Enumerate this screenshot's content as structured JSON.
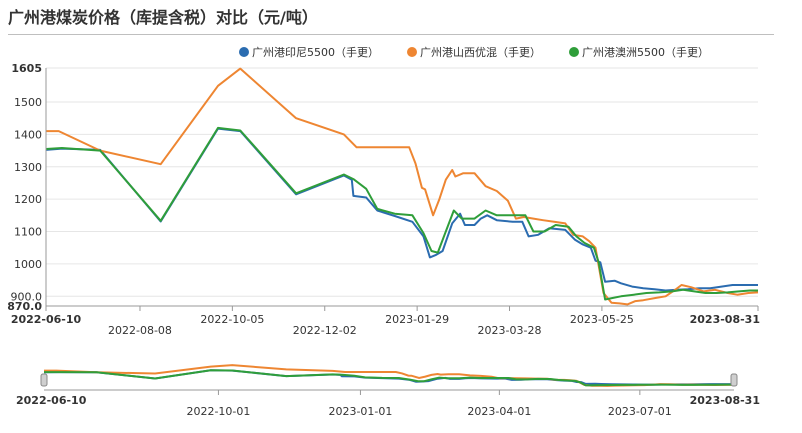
{
  "colors": {
    "series1": "#2b6cb0",
    "series2": "#ee8632",
    "series3": "#2f9e3a",
    "axis": "#666666",
    "grid": "#e6e6e6"
  },
  "chart_data": {
    "type": "line",
    "title": "广州港煤炭价格（库提含税）对比（元/吨）",
    "ylim": [
      870,
      1605
    ],
    "y_ticks": [
      {
        "v": 870,
        "label": "870.0"
      },
      {
        "v": 900,
        "label": "900.0"
      },
      {
        "v": 1000,
        "label": "1000"
      },
      {
        "v": 1100,
        "label": "1100"
      },
      {
        "v": 1200,
        "label": "1200"
      },
      {
        "v": 1300,
        "label": "1300"
      },
      {
        "v": 1400,
        "label": "1400"
      },
      {
        "v": 1500,
        "label": "1500"
      },
      {
        "v": 1605,
        "label": "1605"
      }
    ],
    "xlim": [
      "2022-06-10",
      "2023-08-31"
    ],
    "x_ticks": [
      {
        "d": "2022-06-10",
        "label": "2022-06-10",
        "row": 0,
        "bold": true
      },
      {
        "d": "2022-08-08",
        "label": "2022-08-08",
        "row": 1,
        "bold": false
      },
      {
        "d": "2022-10-05",
        "label": "2022-10-05",
        "row": 0,
        "bold": false
      },
      {
        "d": "2022-12-02",
        "label": "2022-12-02",
        "row": 1,
        "bold": false
      },
      {
        "d": "2023-01-29",
        "label": "2023-01-29",
        "row": 0,
        "bold": false
      },
      {
        "d": "2023-03-28",
        "label": "2023-03-28",
        "row": 1,
        "bold": false
      },
      {
        "d": "2023-05-25",
        "label": "2023-05-25",
        "row": 0,
        "bold": false
      },
      {
        "d": "2023-08-31",
        "label": "2023-08-31",
        "row": 0,
        "bold": true
      }
    ],
    "legend_position": "top-right",
    "series": [
      {
        "name": "广州港印尼5500（手更）",
        "color": "#2b6cb0",
        "points": [
          [
            "2022-06-10",
            1352
          ],
          [
            "2022-06-20",
            1356
          ],
          [
            "2022-07-14",
            1352
          ],
          [
            "2022-08-21",
            1131
          ],
          [
            "2022-09-26",
            1418
          ],
          [
            "2022-10-10",
            1410
          ],
          [
            "2022-11-14",
            1215
          ],
          [
            "2022-12-14",
            1273
          ],
          [
            "2022-12-19",
            1260
          ],
          [
            "2022-12-20",
            1210
          ],
          [
            "2022-12-28",
            1205
          ],
          [
            "2023-01-04",
            1165
          ],
          [
            "2023-01-15",
            1148
          ],
          [
            "2023-01-26",
            1130
          ],
          [
            "2023-02-02",
            1085
          ],
          [
            "2023-02-06",
            1020
          ],
          [
            "2023-02-10",
            1028
          ],
          [
            "2023-02-14",
            1040
          ],
          [
            "2023-02-20",
            1125
          ],
          [
            "2023-02-25",
            1155
          ],
          [
            "2023-02-28",
            1120
          ],
          [
            "2023-03-06",
            1120
          ],
          [
            "2023-03-10",
            1140
          ],
          [
            "2023-03-14",
            1150
          ],
          [
            "2023-03-20",
            1135
          ],
          [
            "2023-03-30",
            1130
          ],
          [
            "2023-04-05",
            1130
          ],
          [
            "2023-04-09",
            1085
          ],
          [
            "2023-04-15",
            1090
          ],
          [
            "2023-04-22",
            1110
          ],
          [
            "2023-05-02",
            1105
          ],
          [
            "2023-05-08",
            1075
          ],
          [
            "2023-05-13",
            1060
          ],
          [
            "2023-05-18",
            1050
          ],
          [
            "2023-05-21",
            1010
          ],
          [
            "2023-05-24",
            1005
          ],
          [
            "2023-05-27",
            945
          ],
          [
            "2023-06-02",
            948
          ],
          [
            "2023-06-06",
            940
          ],
          [
            "2023-06-13",
            930
          ],
          [
            "2023-06-20",
            925
          ],
          [
            "2023-06-27",
            922
          ],
          [
            "2023-07-04",
            918
          ],
          [
            "2023-07-11",
            920
          ],
          [
            "2023-07-18",
            922
          ],
          [
            "2023-07-25",
            925
          ],
          [
            "2023-08-01",
            925
          ],
          [
            "2023-08-08",
            930
          ],
          [
            "2023-08-15",
            935
          ],
          [
            "2023-08-22",
            935
          ],
          [
            "2023-08-31",
            935
          ]
        ]
      },
      {
        "name": "广州港山西优混（手更）",
        "color": "#ee8632",
        "points": [
          [
            "2022-06-10",
            1410
          ],
          [
            "2022-06-18",
            1410
          ],
          [
            "2022-07-14",
            1350
          ],
          [
            "2022-08-21",
            1308
          ],
          [
            "2022-09-26",
            1550
          ],
          [
            "2022-10-10",
            1603
          ],
          [
            "2022-11-14",
            1450
          ],
          [
            "2022-12-14",
            1400
          ],
          [
            "2022-12-22",
            1360
          ],
          [
            "2023-01-15",
            1360
          ],
          [
            "2023-01-24",
            1360
          ],
          [
            "2023-01-28",
            1310
          ],
          [
            "2023-02-01",
            1235
          ],
          [
            "2023-02-03",
            1230
          ],
          [
            "2023-02-08",
            1150
          ],
          [
            "2023-02-12",
            1200
          ],
          [
            "2023-02-16",
            1260
          ],
          [
            "2023-02-20",
            1290
          ],
          [
            "2023-02-22",
            1270
          ],
          [
            "2023-02-27",
            1280
          ],
          [
            "2023-03-06",
            1280
          ],
          [
            "2023-03-13",
            1240
          ],
          [
            "2023-03-20",
            1225
          ],
          [
            "2023-03-27",
            1195
          ],
          [
            "2023-04-01",
            1140
          ],
          [
            "2023-04-06",
            1145
          ],
          [
            "2023-04-12",
            1140
          ],
          [
            "2023-04-18",
            1135
          ],
          [
            "2023-04-25",
            1130
          ],
          [
            "2023-05-02",
            1125
          ],
          [
            "2023-05-07",
            1090
          ],
          [
            "2023-05-13",
            1085
          ],
          [
            "2023-05-17",
            1070
          ],
          [
            "2023-05-21",
            1050
          ],
          [
            "2023-05-26",
            910
          ],
          [
            "2023-05-31",
            880
          ],
          [
            "2023-06-05",
            878
          ],
          [
            "2023-06-10",
            875
          ],
          [
            "2023-06-15",
            885
          ],
          [
            "2023-06-20",
            888
          ],
          [
            "2023-06-28",
            895
          ],
          [
            "2023-07-04",
            900
          ],
          [
            "2023-07-10",
            920
          ],
          [
            "2023-07-14",
            935
          ],
          [
            "2023-07-20",
            928
          ],
          [
            "2023-07-28",
            915
          ],
          [
            "2023-08-04",
            920
          ],
          [
            "2023-08-12",
            910
          ],
          [
            "2023-08-18",
            905
          ],
          [
            "2023-08-25",
            910
          ],
          [
            "2023-08-31",
            912
          ]
        ]
      },
      {
        "name": "广州港澳洲5500（手更）",
        "color": "#2f9e3a",
        "points": [
          [
            "2022-06-10",
            1355
          ],
          [
            "2022-06-20",
            1358
          ],
          [
            "2022-07-14",
            1350
          ],
          [
            "2022-08-21",
            1133
          ],
          [
            "2022-09-26",
            1420
          ],
          [
            "2022-10-10",
            1412
          ],
          [
            "2022-11-14",
            1218
          ],
          [
            "2022-12-14",
            1276
          ],
          [
            "2022-12-20",
            1262
          ],
          [
            "2022-12-28",
            1232
          ],
          [
            "2023-01-04",
            1170
          ],
          [
            "2023-01-15",
            1155
          ],
          [
            "2023-01-26",
            1150
          ],
          [
            "2023-02-02",
            1095
          ],
          [
            "2023-02-07",
            1040
          ],
          [
            "2023-02-11",
            1035
          ],
          [
            "2023-02-16",
            1100
          ],
          [
            "2023-02-21",
            1165
          ],
          [
            "2023-02-26",
            1140
          ],
          [
            "2023-03-06",
            1140
          ],
          [
            "2023-03-13",
            1165
          ],
          [
            "2023-03-20",
            1150
          ],
          [
            "2023-03-30",
            1150
          ],
          [
            "2023-04-07",
            1150
          ],
          [
            "2023-04-12",
            1100
          ],
          [
            "2023-04-19",
            1100
          ],
          [
            "2023-04-26",
            1120
          ],
          [
            "2023-05-04",
            1115
          ],
          [
            "2023-05-09",
            1085
          ],
          [
            "2023-05-14",
            1065
          ],
          [
            "2023-05-20",
            1050
          ],
          [
            "2023-05-23",
            1005
          ],
          [
            "2023-05-27",
            890
          ],
          [
            "2023-06-01",
            895
          ],
          [
            "2023-06-06",
            900
          ],
          [
            "2023-06-14",
            905
          ],
          [
            "2023-06-22",
            910
          ],
          [
            "2023-06-30",
            912
          ],
          [
            "2023-07-08",
            915
          ],
          [
            "2023-07-15",
            920
          ],
          [
            "2023-07-22",
            915
          ],
          [
            "2023-07-29",
            910
          ],
          [
            "2023-08-05",
            910
          ],
          [
            "2023-08-12",
            912
          ],
          [
            "2023-08-19",
            915
          ],
          [
            "2023-08-26",
            918
          ],
          [
            "2023-08-31",
            918
          ]
        ]
      }
    ]
  },
  "navigator": {
    "start_label": "2022-06-10",
    "end_label": "2023-08-31",
    "ticks": [
      {
        "d": "2022-10-01",
        "label": "2022-10-01"
      },
      {
        "d": "2023-01-01",
        "label": "2023-01-01"
      },
      {
        "d": "2023-04-01",
        "label": "2023-04-01"
      },
      {
        "d": "2023-07-01",
        "label": "2023-07-01"
      }
    ]
  }
}
